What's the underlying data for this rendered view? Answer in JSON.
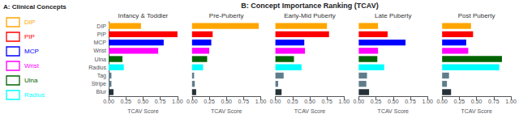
{
  "chart_data": [
    {
      "type": "diagram",
      "title": "A: Clinical Concepts",
      "annotations": [
        {
          "text": "DIP",
          "color": "orange"
        },
        {
          "text": "PIP",
          "color": "red"
        },
        {
          "text": "MCP",
          "color": "blue"
        },
        {
          "text": "Wrist",
          "color": "magenta"
        },
        {
          "text": "Ulna",
          "color": "darkgreen"
        },
        {
          "text": "Radius",
          "color": "cyan"
        }
      ]
    },
    {
      "type": "bar",
      "orientation": "horizontal",
      "title": "B: Concept Importance Ranking (TCAV)",
      "categories": [
        "DIP",
        "PIP",
        "MCP",
        "Wrist",
        "Ulna",
        "Radius",
        "Tag",
        "Stripe",
        "Blur"
      ],
      "colors": [
        "orange",
        "red",
        "blue",
        "magenta",
        "darkgreen",
        "cyan",
        "#607d8b",
        "#607d8b",
        "#263238"
      ],
      "series": [
        {
          "name": "Infancy & Toddler",
          "values": [
            0.47,
            1.0,
            0.8,
            0.72,
            0.2,
            0.22,
            0.04,
            0.04,
            0.07
          ]
        },
        {
          "name": "Pre-Puberty",
          "values": [
            0.97,
            0.3,
            0.28,
            0.25,
            0.22,
            0.16,
            0.03,
            0.04,
            0.06
          ]
        },
        {
          "name": "Early-Mid Puberty",
          "values": [
            0.75,
            0.78,
            0.42,
            0.43,
            0.27,
            0.38,
            0.12,
            0.04,
            0.09
          ]
        },
        {
          "name": "Late Puberty",
          "values": [
            0.28,
            0.42,
            0.68,
            0.28,
            0.27,
            0.37,
            0.12,
            0.11,
            0.15
          ]
        },
        {
          "name": "Post Puberty",
          "values": [
            0.42,
            0.45,
            0.35,
            0.38,
            0.87,
            0.83,
            0.1,
            0.07,
            0.13
          ]
        }
      ],
      "xlabel": "TCAV Score",
      "xlim": [
        0,
        1.0
      ],
      "xticks": [
        {
          "value": 0,
          "label": "0.00"
        },
        {
          "value": 0.25,
          "label": "0.25"
        },
        {
          "value": 0.5,
          "label": "0.50"
        },
        {
          "value": 0.75,
          "label": "0.75"
        },
        {
          "value": 1.0,
          "label": "1.00"
        }
      ],
      "grid": false
    }
  ]
}
